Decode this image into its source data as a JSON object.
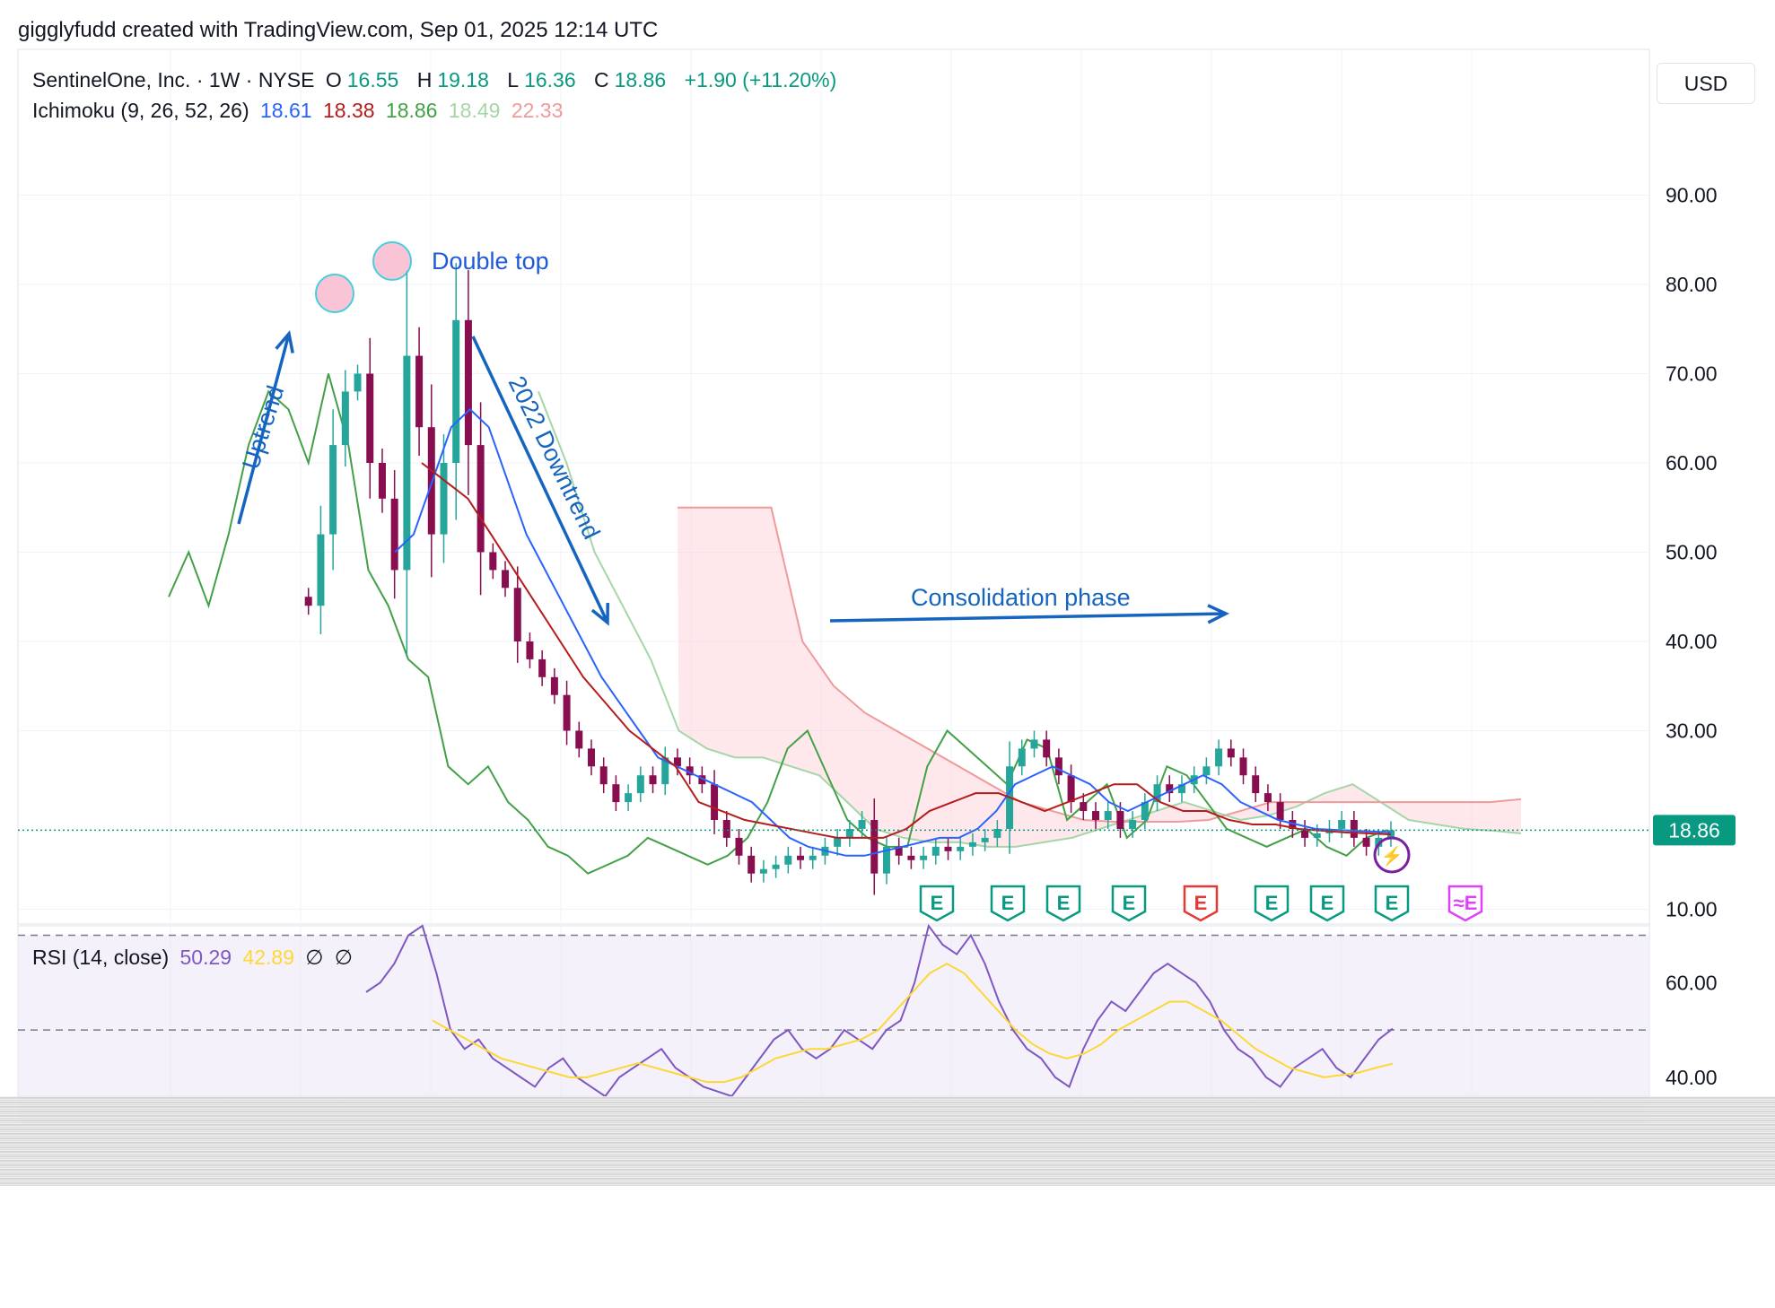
{
  "credit": "gigglyfudd created with TradingView.com, Sep 01, 2025 12:14 UTC",
  "currency": "USD",
  "legend": {
    "symbol": "SentinelOne, Inc. · 1W · NYSE",
    "o_label": "O",
    "o": "16.55",
    "h_label": "H",
    "h": "19.18",
    "l_label": "L",
    "l": "16.36",
    "c_label": "C",
    "c": "18.86",
    "change": "+1.90 (+11.20%)"
  },
  "ichimoku": {
    "label": "Ichimoku (9, 26, 52, 26)",
    "values": [
      "18.61",
      "18.38",
      "18.86",
      "18.49",
      "22.33"
    ],
    "colors": [
      "#2962ff",
      "#b71c1c",
      "#43a047",
      "#a5d6a7",
      "#ef9a9a"
    ]
  },
  "rsi_legend": {
    "label": "RSI (14, close)",
    "rsi": "50.29",
    "ma": "42.89",
    "n1": "∅",
    "n2": "∅"
  },
  "colors": {
    "up": "#26a69a",
    "down": "#880e4f",
    "tenkan": "#2962ff",
    "kijun": "#b71c1c",
    "chikou": "#43a047",
    "spanA": "#a5d6a7",
    "spanB": "#ef9a9a",
    "rsi": "#7e57c2",
    "rsi_ma": "#fdd835",
    "annotation": "#1565c0",
    "earnings": "#089981",
    "earnings_miss": "#e53935",
    "earnings_future": "#e040fb",
    "dividend": "#7b1fa2",
    "last_price_bg": "#089981"
  },
  "chart_data": {
    "type": "candlestick",
    "title": "SentinelOne, Inc. · 1W · NYSE",
    "y_ticks": [
      "90.00",
      "80.00",
      "70.00",
      "60.00",
      "50.00",
      "40.00",
      "30.00",
      "10.00"
    ],
    "ylim": [
      0,
      95
    ],
    "last_price": "18.86",
    "close_path": [
      45,
      44,
      52,
      62,
      68,
      70,
      60,
      56,
      48,
      72,
      64,
      52,
      60,
      76,
      62,
      50,
      48,
      46,
      40,
      38,
      36,
      34,
      30,
      28,
      26,
      24,
      22,
      23,
      25,
      24,
      27,
      26,
      25,
      24,
      20,
      18,
      16,
      14,
      14.5,
      15,
      16,
      15.5,
      16,
      17,
      18,
      19,
      20,
      14,
      17,
      16,
      15.5,
      16,
      17,
      16.5,
      17,
      17.5,
      18,
      19,
      26,
      28,
      29,
      27,
      25,
      22,
      21,
      20,
      21,
      19,
      20,
      22,
      24,
      23,
      24,
      25,
      26,
      28,
      27,
      25,
      23,
      22,
      20,
      19,
      18,
      18.5,
      19,
      20,
      18,
      17,
      18,
      18.86
    ],
    "tenkan_path": [
      50,
      52,
      58,
      64,
      66,
      64,
      58,
      52,
      48,
      44,
      40,
      36,
      33,
      30,
      27,
      26,
      25,
      24,
      23,
      22,
      20,
      18,
      17,
      16.5,
      16,
      16,
      16.5,
      17,
      17.5,
      18,
      18,
      19,
      21,
      24,
      25,
      26,
      25,
      24,
      22,
      21,
      22,
      23,
      24,
      25,
      24,
      22,
      21,
      20,
      19.5,
      19,
      18.9,
      18.8,
      18.7,
      18.61
    ],
    "kijun_path": [
      60,
      58,
      56,
      52,
      48,
      44,
      40,
      36,
      33,
      30,
      28,
      26,
      22,
      21,
      20,
      19.5,
      19,
      18.5,
      18,
      18,
      18,
      19,
      21,
      22,
      23,
      23,
      22,
      21,
      22,
      23,
      24,
      24,
      22,
      21,
      21,
      20,
      19.5,
      19.5,
      19,
      18.8,
      18.6,
      18.5,
      18.38
    ],
    "chikou_path": [
      45,
      50,
      44,
      52,
      62,
      68,
      66,
      60,
      70,
      62,
      48,
      44,
      38,
      36,
      26,
      24,
      26,
      22,
      20,
      17,
      16,
      14,
      15,
      16,
      18,
      17,
      16,
      15,
      16,
      18,
      22,
      28,
      30,
      25,
      20,
      18,
      17,
      17,
      26,
      30,
      28,
      26,
      24,
      29,
      28,
      20,
      22,
      24,
      18,
      20,
      26,
      25,
      22,
      19,
      18,
      17,
      18,
      19,
      17,
      16,
      18,
      18.86
    ],
    "cloud_spanA_path": [
      68,
      60,
      50,
      44,
      38,
      30,
      28,
      27,
      27,
      26,
      25,
      22,
      19,
      18,
      17.5,
      17.5,
      17,
      17,
      17.5,
      18,
      19,
      20,
      21,
      22,
      21,
      20,
      20.5,
      21.5,
      23,
      24,
      22,
      20,
      19.5,
      19,
      18.8,
      18.49
    ],
    "cloud_spanB_path": [
      55,
      55,
      55,
      55,
      40,
      35,
      32,
      30,
      28,
      26,
      24,
      22,
      21,
      20,
      19.8,
      19.8,
      19.8,
      20,
      21,
      22,
      22,
      22,
      22,
      22,
      22,
      22,
      22,
      22.33
    ],
    "annotations": [
      "Double top",
      "Uptrend",
      "2022 Downtrend",
      "Consolidation phase"
    ],
    "earnings_markers": [
      "E",
      "E",
      "E",
      "E",
      "E",
      "E",
      "E",
      "E",
      "≈E"
    ],
    "rsi": {
      "y_ticks": [
        "60.00",
        "40.00"
      ],
      "ylim": [
        36,
        72
      ],
      "rsi_path": [
        58,
        60,
        64,
        70,
        72,
        62,
        50,
        46,
        48,
        44,
        42,
        40,
        38,
        42,
        44,
        40,
        38,
        36,
        40,
        42,
        44,
        46,
        42,
        40,
        38,
        37,
        36,
        40,
        44,
        48,
        50,
        46,
        44,
        46,
        50,
        48,
        46,
        50,
        52,
        60,
        72,
        68,
        66,
        70,
        64,
        56,
        50,
        46,
        44,
        40,
        38,
        46,
        52,
        56,
        54,
        58,
        62,
        64,
        62,
        60,
        56,
        50,
        46,
        44,
        40,
        38,
        42,
        44,
        46,
        42,
        40,
        44,
        48,
        50.29
      ],
      "ma_path": [
        52,
        50,
        48,
        46,
        44,
        43,
        42,
        41,
        40,
        40,
        41,
        42,
        43,
        42,
        41,
        40,
        39,
        39,
        40,
        42,
        44,
        45,
        46,
        46,
        47,
        48,
        50,
        54,
        58,
        62,
        64,
        62,
        58,
        54,
        50,
        47,
        45,
        44,
        45,
        47,
        50,
        52,
        54,
        56,
        56,
        54,
        52,
        49,
        46,
        44,
        42,
        41,
        40,
        40.5,
        41,
        42,
        42.89
      ]
    }
  }
}
